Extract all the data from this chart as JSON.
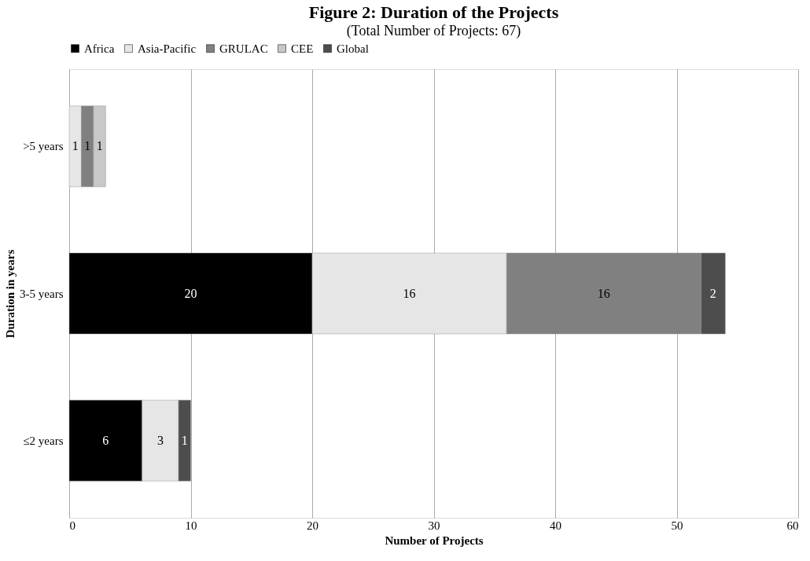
{
  "chart_data": {
    "type": "bar",
    "orientation": "horizontal",
    "stacked": true,
    "title": "Figure 2: Duration of the Projects",
    "subtitle": "(Total Number of Projects: 67)",
    "xlabel": "Number of Projects",
    "ylabel": "Duration in years",
    "categories": [
      ">5 years",
      "3-5 years",
      "≤2 years"
    ],
    "series": [
      {
        "name": "Africa",
        "color": "#000000",
        "values": [
          null,
          20,
          6
        ]
      },
      {
        "name": "Asia-Pacific",
        "color": "#e6e6e6",
        "values": [
          1,
          16,
          3
        ]
      },
      {
        "name": "GRULAC",
        "color": "#808080",
        "values": [
          1,
          16,
          null
        ]
      },
      {
        "name": "CEE",
        "color": "#c8c8c8",
        "values": [
          1,
          null,
          null
        ]
      },
      {
        "name": "Global",
        "color": "#4d4d4d",
        "values": [
          null,
          2,
          1
        ]
      }
    ],
    "xlim": [
      0,
      60
    ],
    "xticks": [
      0,
      10,
      20,
      30,
      40,
      50,
      60
    ],
    "grid": "x",
    "legend": "top",
    "data_labels": true
  }
}
